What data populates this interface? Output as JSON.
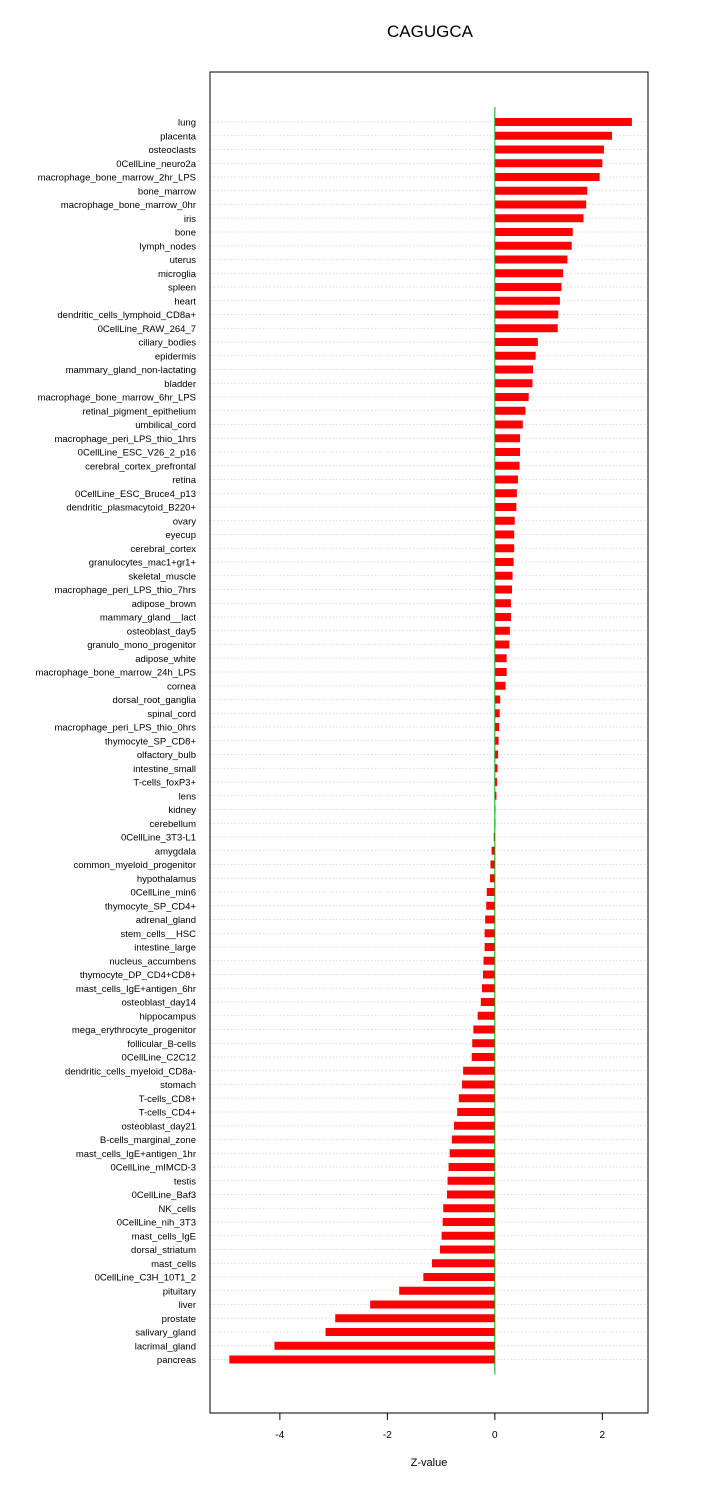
{
  "chart_data": {
    "type": "bar",
    "orientation": "horizontal",
    "title": "CAGUGCA",
    "xlabel": "Z-value",
    "ylabel": "",
    "xlim": [
      -5.3,
      2.85
    ],
    "xticks": [
      -4,
      -2,
      0,
      2
    ],
    "grid": true,
    "bar_color": "#ff0000",
    "zero_line_color": "#00aa00",
    "categories": [
      "lung",
      "placenta",
      "osteoclasts",
      "0CellLine_neuro2a",
      "macrophage_bone_marrow_2hr_LPS",
      "bone_marrow",
      "macrophage_bone_marrow_0hr",
      "iris",
      "bone",
      "lymph_nodes",
      "uterus",
      "microglia",
      "spleen",
      "heart",
      "dendritic_cells_lymphoid_CD8a+",
      "0CellLine_RAW_264_7",
      "ciliary_bodies",
      "epidermis",
      "mammary_gland_non-lactating",
      "bladder",
      "macrophage_bone_marrow_6hr_LPS",
      "retinal_pigment_epithelium",
      "umbilical_cord",
      "macrophage_peri_LPS_thio_1hrs",
      "0CellLine_ESC_V26_2_p16",
      "cerebral_cortex_prefrontal",
      "retina",
      "0CellLine_ESC_Bruce4_p13",
      "dendritic_plasmacytoid_B220+",
      "ovary",
      "eyecup",
      "cerebral_cortex",
      "granulocytes_mac1+gr1+",
      "skeletal_muscle",
      "macrophage_peri_LPS_thio_7hrs",
      "adipose_brown",
      "mammary_gland__lact",
      "osteoblast_day5",
      "granulo_mono_progenitor",
      "adipose_white",
      "macrophage_bone_marrow_24h_LPS",
      "cornea",
      "dorsal_root_ganglia",
      "spinal_cord",
      "macrophage_peri_LPS_thio_0hrs",
      "thymocyte_SP_CD8+",
      "olfactory_bulb",
      "intestine_small",
      "T-cells_foxP3+",
      "lens",
      "kidney",
      "cerebellum",
      "0CellLine_3T3-L1",
      "amygdala",
      "common_myeloid_progenitor",
      "hypothalamus",
      "0CellLine_min6",
      "thymocyte_SP_CD4+",
      "adrenal_gland",
      "stem_cells__HSC",
      "intestine_large",
      "nucleus_accumbens",
      "thymocyte_DP_CD4+CD8+",
      "mast_cells_IgE+antigen_6hr",
      "osteoblast_day14",
      "hippocampus",
      "mega_erythrocyte_progenitor",
      "follicular_B-cells",
      "0CellLine_C2C12",
      "dendritic_cells_myeloid_CD8a-",
      "stomach",
      "T-cells_CD8+",
      "T-cells_CD4+",
      "osteoblast_day21",
      "B-cells_marginal_zone",
      "mast_cells_IgE+antigen_1hr",
      "0CellLine_mIMCD-3",
      "testis",
      "0CellLine_Baf3",
      "NK_cells",
      "0CellLine_nih_3T3",
      "mast_cells_IgE",
      "dorsal_striatum",
      "mast_cells",
      "0CellLine_C3H_10T1_2",
      "pituitary",
      "liver",
      "prostate",
      "salivary_gland",
      "lacrimal_gland",
      "pancreas"
    ],
    "values": [
      2.55,
      2.18,
      2.03,
      2.0,
      1.95,
      1.72,
      1.7,
      1.65,
      1.45,
      1.43,
      1.35,
      1.27,
      1.24,
      1.21,
      1.18,
      1.17,
      0.8,
      0.76,
      0.71,
      0.7,
      0.63,
      0.57,
      0.52,
      0.47,
      0.47,
      0.46,
      0.43,
      0.41,
      0.4,
      0.37,
      0.36,
      0.36,
      0.35,
      0.33,
      0.32,
      0.3,
      0.3,
      0.28,
      0.27,
      0.22,
      0.22,
      0.2,
      0.1,
      0.09,
      0.08,
      0.07,
      0.06,
      0.05,
      0.04,
      0.03,
      0.01,
      0.0,
      -0.02,
      -0.06,
      -0.08,
      -0.09,
      -0.15,
      -0.16,
      -0.18,
      -0.19,
      -0.19,
      -0.21,
      -0.22,
      -0.24,
      -0.26,
      -0.32,
      -0.4,
      -0.42,
      -0.43,
      -0.59,
      -0.61,
      -0.67,
      -0.7,
      -0.76,
      -0.8,
      -0.84,
      -0.86,
      -0.88,
      -0.89,
      -0.96,
      -0.97,
      -0.99,
      -1.02,
      -1.17,
      -1.33,
      -1.78,
      -2.32,
      -2.97,
      -3.15,
      -4.1,
      -4.94
    ]
  }
}
